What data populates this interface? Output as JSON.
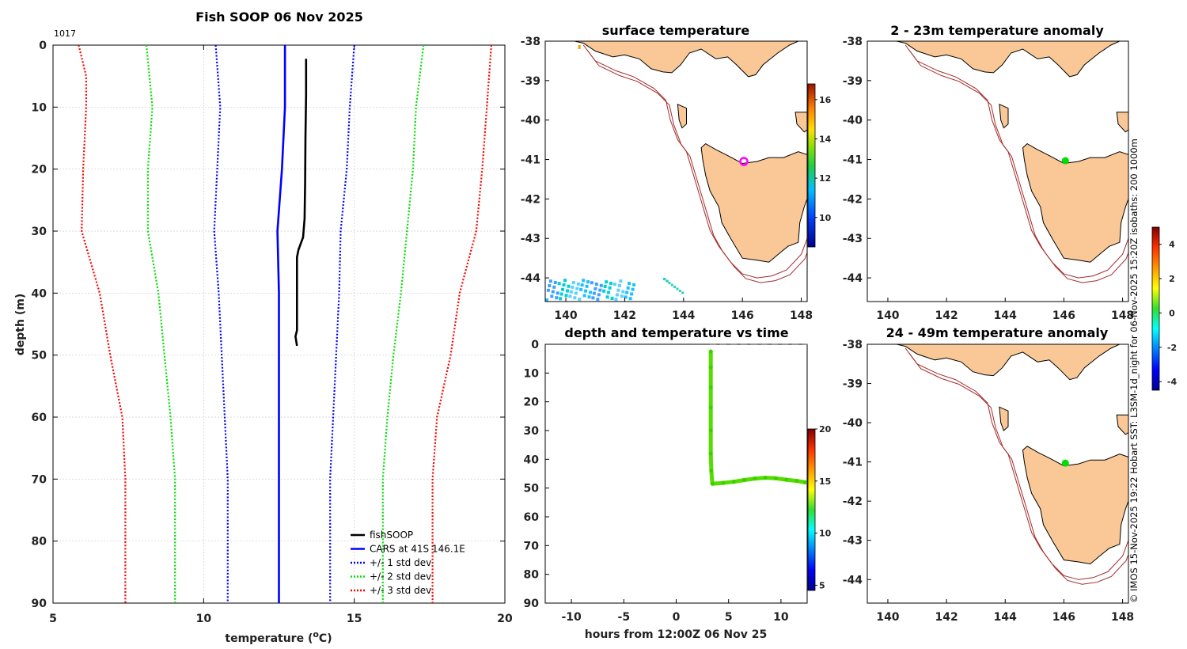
{
  "chart_data": [
    {
      "type": "line",
      "title": "Fish SOOP 06 Nov 2025",
      "id_label": "1017",
      "xlabel": "temperature (°C)",
      "ylabel": "depth (m)",
      "xlim": [
        5,
        20
      ],
      "ylim": [
        0,
        90
      ],
      "x_ticks": [
        "5",
        "10",
        "15",
        "20"
      ],
      "y_ticks": [
        "0",
        "10",
        "20",
        "30",
        "40",
        "50",
        "60",
        "70",
        "80",
        "90"
      ],
      "grid": true,
      "legend_position": "bottom-right",
      "series": [
        {
          "name": "fishSOOP",
          "color": "#000000",
          "style": "solid",
          "points": [
            [
              13.4,
              2.2
            ],
            [
              13.4,
              8
            ],
            [
              13.38,
              15
            ],
            [
              13.37,
              22
            ],
            [
              13.35,
              28
            ],
            [
              13.3,
              31
            ],
            [
              13.15,
              33
            ],
            [
              13.1,
              34.2
            ],
            [
              13.1,
              38
            ],
            [
              13.1,
              42
            ],
            [
              13.1,
              46
            ],
            [
              13.05,
              47
            ],
            [
              13.1,
              48.5
            ]
          ]
        },
        {
          "name": "CARS at 41S 146.1E",
          "color": "#0000ff",
          "style": "solid",
          "points": [
            [
              12.7,
              0
            ],
            [
              12.7,
              10
            ],
            [
              12.6,
              20
            ],
            [
              12.45,
              30
            ],
            [
              12.5,
              40
            ],
            [
              12.5,
              50
            ],
            [
              12.5,
              60
            ],
            [
              12.5,
              70
            ],
            [
              12.5,
              80
            ],
            [
              12.5,
              90
            ]
          ]
        },
        {
          "name": "+/- 1 std dev",
          "color": "#0000ff",
          "style": "dotted",
          "points": [
            [
              10.4,
              0
            ],
            [
              10.55,
              10
            ],
            [
              10.45,
              20
            ],
            [
              10.35,
              30
            ],
            [
              10.5,
              40
            ],
            [
              10.6,
              50
            ],
            [
              10.7,
              60
            ],
            [
              10.8,
              70
            ],
            [
              10.8,
              80
            ],
            [
              10.8,
              90
            ]
          ]
        },
        {
          "name": "",
          "color": "#0000ff",
          "style": "dotted",
          "points": [
            [
              15.0,
              0
            ],
            [
              14.85,
              10
            ],
            [
              14.75,
              20
            ],
            [
              14.55,
              30
            ],
            [
              14.5,
              40
            ],
            [
              14.4,
              50
            ],
            [
              14.3,
              60
            ],
            [
              14.2,
              70
            ],
            [
              14.2,
              80
            ],
            [
              14.2,
              90
            ]
          ]
        },
        {
          "name": "+/- 2 std dev",
          "color": "#00e000",
          "style": "dotted",
          "points": [
            [
              8.1,
              0
            ],
            [
              8.3,
              10
            ],
            [
              8.15,
              20
            ],
            [
              8.15,
              30
            ],
            [
              8.5,
              40
            ],
            [
              8.7,
              50
            ],
            [
              8.9,
              60
            ],
            [
              9.05,
              70
            ],
            [
              9.05,
              80
            ],
            [
              9.05,
              90
            ]
          ]
        },
        {
          "name": "",
          "color": "#00e000",
          "style": "dotted",
          "points": [
            [
              17.3,
              0
            ],
            [
              17.05,
              10
            ],
            [
              16.95,
              20
            ],
            [
              16.75,
              30
            ],
            [
              16.55,
              40
            ],
            [
              16.3,
              50
            ],
            [
              16.1,
              60
            ],
            [
              15.95,
              70
            ],
            [
              15.95,
              80
            ],
            [
              15.95,
              90
            ]
          ]
        },
        {
          "name": "+/- 3 std dev",
          "color": "#ff0000",
          "style": "dotted",
          "points": [
            [
              5.85,
              0
            ],
            [
              6.1,
              5
            ],
            [
              6.1,
              10
            ],
            [
              6.0,
              20
            ],
            [
              5.95,
              30
            ],
            [
              6.55,
              40
            ],
            [
              6.9,
              50
            ],
            [
              7.3,
              60
            ],
            [
              7.4,
              70
            ],
            [
              7.4,
              80
            ],
            [
              7.4,
              90
            ]
          ]
        },
        {
          "name": "",
          "color": "#ff0000",
          "style": "dotted",
          "points": [
            [
              19.55,
              0
            ],
            [
              19.4,
              10
            ],
            [
              19.25,
              20
            ],
            [
              19.05,
              30
            ],
            [
              18.5,
              40
            ],
            [
              18.2,
              50
            ],
            [
              17.75,
              60
            ],
            [
              17.6,
              70
            ],
            [
              17.6,
              80
            ],
            [
              17.6,
              90
            ]
          ]
        }
      ]
    },
    {
      "type": "heatmap",
      "title": "surface temperature",
      "xlim": [
        139.3,
        148.2
      ],
      "ylim": [
        -44.6,
        -38
      ],
      "x_ticks": [
        "140",
        "142",
        "144",
        "146",
        "148"
      ],
      "y_ticks": [
        "-38",
        "-39",
        "-40",
        "-41",
        "-42",
        "-43",
        "-44"
      ],
      "colorbar": {
        "range": [
          8.5,
          16.8
        ],
        "ticks": [
          "10",
          "12",
          "14",
          "16"
        ]
      },
      "marker": {
        "lon": 146.05,
        "lat": -41.05,
        "color": "#ff00ff",
        "shape": "open-circle"
      }
    },
    {
      "type": "heatmap",
      "title": "2 - 23m temperature anomaly",
      "xlim": [
        139.3,
        148.2
      ],
      "ylim": [
        -44.6,
        -38
      ],
      "x_ticks": [
        "140",
        "142",
        "144",
        "146",
        "148"
      ],
      "y_ticks": [
        "-38",
        "-39",
        "-40",
        "-41",
        "-42",
        "-43",
        "-44"
      ],
      "marker": {
        "lon": 146.05,
        "lat": -41.03,
        "color": "#00dd00",
        "shape": "filled-circle"
      }
    },
    {
      "type": "scatter",
      "title": "depth and temperature vs time",
      "xlabel": "hours from 12:00Z 06 Nov 25",
      "xlim": [
        -12.5,
        12.5
      ],
      "ylim": [
        0,
        90
      ],
      "x_ticks": [
        "-10",
        "-5",
        "0",
        "5",
        "10"
      ],
      "y_ticks": [
        "0",
        "10",
        "20",
        "30",
        "40",
        "50",
        "60",
        "70",
        "80",
        "90"
      ],
      "colorbar": {
        "range": [
          4.5,
          20
        ],
        "ticks": [
          "5",
          "10",
          "15",
          "20"
        ]
      },
      "series": [
        {
          "name": "fishSOOP track",
          "color": "#55dd00",
          "points": [
            [
              3.3,
              2.5
            ],
            [
              3.3,
              8
            ],
            [
              3.3,
              15
            ],
            [
              3.3,
              22
            ],
            [
              3.3,
              30
            ],
            [
              3.3,
              38
            ],
            [
              3.35,
              44
            ],
            [
              3.45,
              48.5
            ],
            [
              4.5,
              48.2
            ],
            [
              5.5,
              47.8
            ],
            [
              6.5,
              47.2
            ],
            [
              7.5,
              46.7
            ],
            [
              8.5,
              46.4
            ],
            [
              9.5,
              46.6
            ],
            [
              10.5,
              47.1
            ],
            [
              11.5,
              47.5
            ],
            [
              12.3,
              48.0
            ]
          ]
        }
      ]
    },
    {
      "type": "heatmap",
      "title": "24 - 49m temperature anomaly",
      "xlim": [
        139.3,
        148.2
      ],
      "ylim": [
        -44.6,
        -38
      ],
      "x_ticks": [
        "140",
        "142",
        "144",
        "146",
        "148"
      ],
      "y_ticks": [
        "-38",
        "-39",
        "-40",
        "-41",
        "-42",
        "-43",
        "-44"
      ],
      "colorbar": {
        "range": [
          -4.5,
          5
        ],
        "ticks": [
          "4",
          "2",
          "0",
          "-2",
          "-4"
        ]
      },
      "marker": {
        "lon": 146.05,
        "lat": -41.03,
        "color": "#00dd00",
        "shape": "filled-circle"
      }
    }
  ],
  "footnote": "© IMOS 15-Nov-2025 19:22 Hobart SST: L3SM-1d_night for 06-Nov-2025 15:20Z isobaths: 200  1000m",
  "colors": {
    "land": "#f9c896",
    "isobath": "#a52a2a",
    "axis": "#000000"
  }
}
